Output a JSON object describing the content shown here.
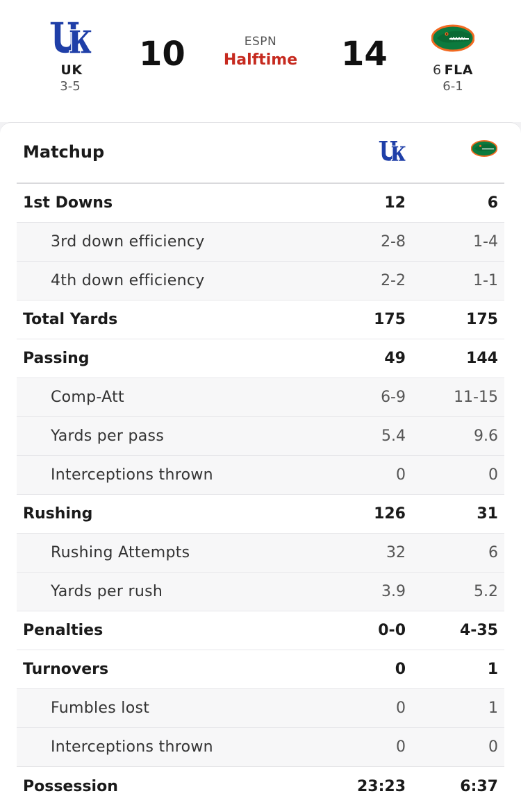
{
  "game": {
    "network": "ESPN",
    "period": "Halftime",
    "away": {
      "abbr": "UK",
      "rank": "",
      "record": "3-5",
      "score": "10",
      "logo_icon": "kentucky-wildcats-logo",
      "color": "#1f3fa8"
    },
    "home": {
      "abbr": "FLA",
      "rank": "6",
      "record": "6-1",
      "score": "14",
      "logo_icon": "florida-gators-logo",
      "color": "#0b7a3e"
    }
  },
  "matchup": {
    "title": "Matchup",
    "rows": [
      {
        "label": "1st Downs",
        "away": "12",
        "home": "6",
        "level": "main"
      },
      {
        "label": "3rd down efficiency",
        "away": "2-8",
        "home": "1-4",
        "level": "sub"
      },
      {
        "label": "4th down efficiency",
        "away": "2-2",
        "home": "1-1",
        "level": "sub"
      },
      {
        "label": "Total Yards",
        "away": "175",
        "home": "175",
        "level": "main"
      },
      {
        "label": "Passing",
        "away": "49",
        "home": "144",
        "level": "main"
      },
      {
        "label": "Comp-Att",
        "away": "6-9",
        "home": "11-15",
        "level": "sub"
      },
      {
        "label": "Yards per pass",
        "away": "5.4",
        "home": "9.6",
        "level": "sub"
      },
      {
        "label": "Interceptions thrown",
        "away": "0",
        "home": "0",
        "level": "sub"
      },
      {
        "label": "Rushing",
        "away": "126",
        "home": "31",
        "level": "main"
      },
      {
        "label": "Rushing Attempts",
        "away": "32",
        "home": "6",
        "level": "sub"
      },
      {
        "label": "Yards per rush",
        "away": "3.9",
        "home": "5.2",
        "level": "sub"
      },
      {
        "label": "Penalties",
        "away": "0-0",
        "home": "4-35",
        "level": "main"
      },
      {
        "label": "Turnovers",
        "away": "0",
        "home": "1",
        "level": "main"
      },
      {
        "label": "Fumbles lost",
        "away": "0",
        "home": "1",
        "level": "sub"
      },
      {
        "label": "Interceptions thrown",
        "away": "0",
        "home": "0",
        "level": "sub"
      },
      {
        "label": "Possession",
        "away": "23:23",
        "home": "6:37",
        "level": "main"
      }
    ]
  }
}
